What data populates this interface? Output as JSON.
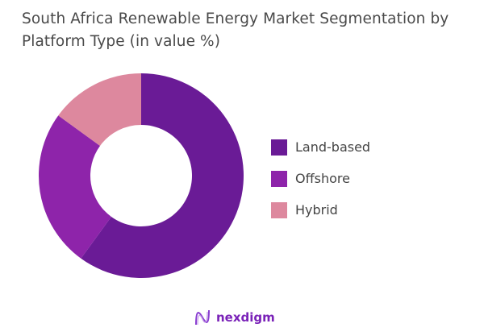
{
  "chart_data": {
    "type": "pie",
    "donut": true,
    "title": "South Africa Renewable Energy Market Segmentation by Platform Type (in value %)",
    "categories": [
      "Land-based",
      "Offshore",
      "Hybrid"
    ],
    "values": [
      60,
      25,
      15
    ],
    "colors": [
      "#6a1b96",
      "#8e24aa",
      "#dd889e"
    ],
    "legend_position": "right"
  },
  "logo": {
    "text": "nexdigm"
  }
}
